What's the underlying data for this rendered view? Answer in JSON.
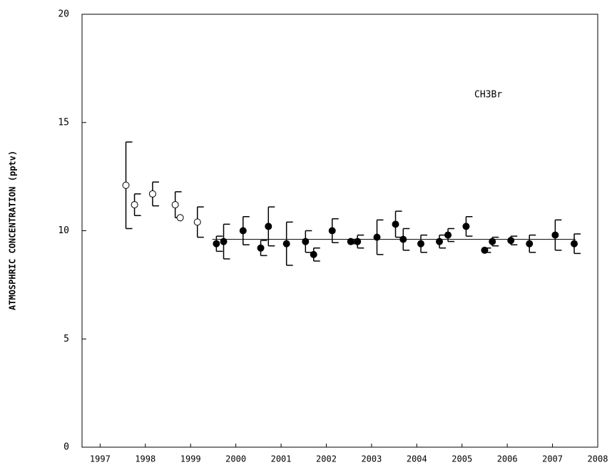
{
  "chart_data": {
    "type": "scatter",
    "y_label": "ATMOSPHRIC CONCENTRATION (pptv)",
    "annotation": "CH3Br",
    "xlim": [
      1996.6,
      2008
    ],
    "xticks": [
      1997,
      1998,
      1999,
      2000,
      2001,
      2002,
      2003,
      2004,
      2005,
      2006,
      2007,
      2008
    ],
    "ylim": [
      0,
      20
    ],
    "yticks": [
      0,
      5,
      10,
      15,
      20
    ],
    "series": [
      {
        "marker": "open",
        "color": "#000000",
        "x": [
          1997.57,
          1997.76,
          1998.16,
          1998.66,
          1998.77,
          1999.15
        ],
        "values": [
          12.1,
          11.2,
          11.7,
          11.2,
          10.6,
          10.4
        ],
        "errors": [
          2.0,
          0.5,
          0.55,
          0.6,
          null,
          0.7
        ]
      },
      {
        "marker": "filled",
        "color": "#000000",
        "x": [
          1999.57,
          1999.73,
          2000.16,
          2000.55,
          2000.72,
          2001.12,
          2001.54,
          2001.72,
          2002.13,
          2002.54,
          2002.69,
          2003.12,
          2003.53,
          2003.7,
          2004.09,
          2004.5,
          2004.69,
          2005.09,
          2005.5,
          2005.67,
          2006.08,
          2006.49,
          2007.06,
          2007.48
        ],
        "values": [
          9.4,
          9.5,
          10.0,
          9.2,
          10.2,
          9.4,
          9.5,
          8.9,
          10.0,
          9.5,
          9.5,
          9.7,
          10.3,
          9.6,
          9.4,
          9.5,
          9.8,
          10.2,
          9.1,
          9.5,
          9.55,
          9.4,
          9.8,
          9.4
        ],
        "errors": [
          0.35,
          0.8,
          0.65,
          0.35,
          0.9,
          1.0,
          0.5,
          0.3,
          0.55,
          0.1,
          0.3,
          0.8,
          0.6,
          0.5,
          0.4,
          0.3,
          0.3,
          0.45,
          0.1,
          0.2,
          0.2,
          0.4,
          0.7,
          0.45
        ]
      },
      {
        "marker": "line",
        "color": "#000000",
        "x": [
          1999.48,
          2007.51
        ],
        "values": [
          9.6,
          9.6
        ]
      }
    ]
  }
}
